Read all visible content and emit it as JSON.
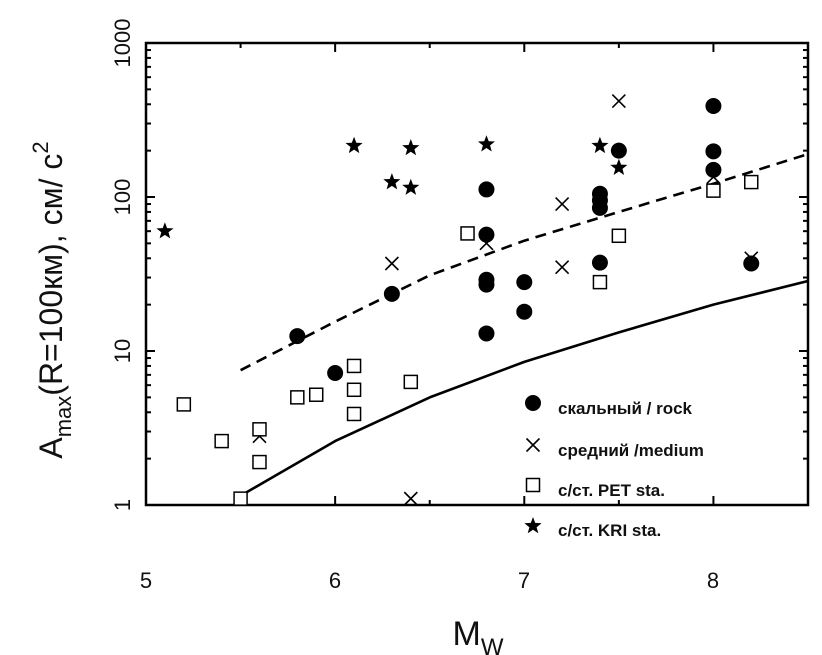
{
  "chart_data": {
    "type": "scatter",
    "title": "",
    "xlabel": "M",
    "xlabel_sub": "W",
    "ylabel": {
      "main": "A",
      "sub": "max",
      "rest": "(R=100км), см/ с",
      "sup": "2"
    },
    "xlim": [
      5,
      8.5
    ],
    "ylim": [
      1,
      1000
    ],
    "y_scale": "log",
    "x_ticks": [
      "5",
      "6",
      "7",
      "8"
    ],
    "y_ticks": [
      "1",
      "10",
      "100",
      "1000"
    ],
    "grid": false,
    "legend_position": "bottom-right",
    "series": [
      {
        "name": "скальный / rock",
        "marker": "filled-circle",
        "points": [
          [
            5.8,
            12.5
          ],
          [
            6.0,
            7.2
          ],
          [
            6.3,
            23.5
          ],
          [
            6.8,
            112
          ],
          [
            6.8,
            57
          ],
          [
            6.8,
            29
          ],
          [
            6.8,
            27
          ],
          [
            6.8,
            13
          ],
          [
            7.0,
            28
          ],
          [
            7.0,
            18
          ],
          [
            7.4,
            105
          ],
          [
            7.4,
            95
          ],
          [
            7.4,
            85
          ],
          [
            7.4,
            37.5
          ],
          [
            7.5,
            200
          ],
          [
            8.0,
            390
          ],
          [
            8.0,
            198
          ],
          [
            8.0,
            150
          ],
          [
            8.2,
            37
          ]
        ]
      },
      {
        "name": "средний /medium",
        "marker": "x",
        "points": [
          [
            5.6,
            2.8
          ],
          [
            6.3,
            37
          ],
          [
            6.4,
            1.1
          ],
          [
            6.8,
            50
          ],
          [
            7.2,
            90
          ],
          [
            7.2,
            35
          ],
          [
            7.5,
            420
          ],
          [
            8.0,
            135
          ],
          [
            8.2,
            40
          ]
        ]
      },
      {
        "name": "с/ст. PET sta.",
        "marker": "open-square",
        "points": [
          [
            5.2,
            4.5
          ],
          [
            5.4,
            2.6
          ],
          [
            5.5,
            1.1
          ],
          [
            5.6,
            3.1
          ],
          [
            5.6,
            1.9
          ],
          [
            5.8,
            5.0
          ],
          [
            5.9,
            5.2
          ],
          [
            6.1,
            8.0
          ],
          [
            6.1,
            5.6
          ],
          [
            6.1,
            3.9
          ],
          [
            6.4,
            6.3
          ],
          [
            6.7,
            58
          ],
          [
            7.4,
            28
          ],
          [
            7.5,
            56
          ],
          [
            8.0,
            110
          ],
          [
            8.2,
            125
          ]
        ]
      },
      {
        "name": "с/ст. KRI sta.",
        "marker": "filled-star",
        "points": [
          [
            5.1,
            60
          ],
          [
            6.1,
            215
          ],
          [
            6.3,
            125
          ],
          [
            6.4,
            208
          ],
          [
            6.4,
            115
          ],
          [
            6.8,
            220
          ],
          [
            7.4,
            215
          ],
          [
            7.5,
            155
          ]
        ]
      }
    ],
    "lines": [
      {
        "style": "dashed",
        "x": [
          5.5,
          6.0,
          6.5,
          7.0,
          7.5,
          8.0,
          8.5
        ],
        "y": [
          7.5,
          15.5,
          31,
          52,
          80,
          122,
          190
        ]
      },
      {
        "style": "solid",
        "x": [
          5.5,
          6.0,
          6.5,
          7.0,
          7.5,
          8.0,
          8.5
        ],
        "y": [
          1.15,
          2.6,
          5.0,
          8.5,
          13.2,
          20.0,
          28.5
        ]
      }
    ]
  }
}
